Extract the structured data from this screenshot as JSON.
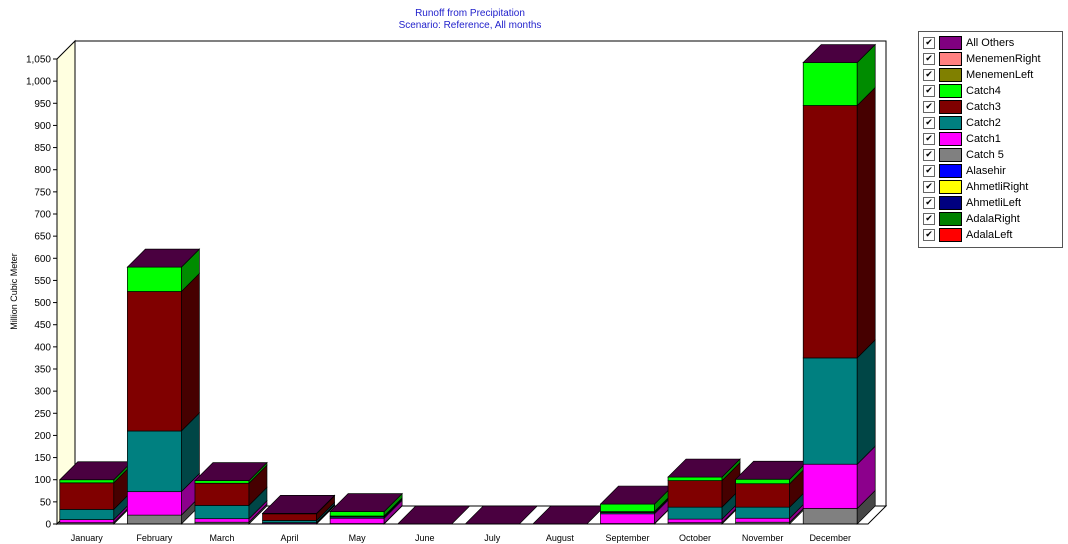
{
  "chart_data": {
    "type": "bar",
    "stacked": true,
    "three_d": true,
    "title": "Runoff from Precipitation",
    "subtitle": "Scenario: Reference,  All months",
    "xlabel": "",
    "ylabel": "Million Cubic Meter",
    "ylim": [
      0,
      1050
    ],
    "yticks": [
      0,
      50,
      100,
      150,
      200,
      250,
      300,
      350,
      400,
      450,
      500,
      550,
      600,
      650,
      700,
      750,
      800,
      850,
      900,
      950,
      1000,
      1050
    ],
    "ytick_labels": [
      "0",
      "50",
      "100",
      "150",
      "200",
      "250",
      "300",
      "350",
      "400",
      "450",
      "500",
      "550",
      "600",
      "650",
      "700",
      "750",
      "800",
      "850",
      "900",
      "950",
      "1,000",
      "1,050"
    ],
    "grid": false,
    "legend_position": "right",
    "categories": [
      "January",
      "February",
      "March",
      "April",
      "May",
      "June",
      "July",
      "August",
      "September",
      "October",
      "November",
      "December"
    ],
    "series": [
      {
        "name": "AdalaLeft",
        "color": "#ff0000",
        "values": [
          0,
          0,
          0,
          0,
          0,
          0,
          0,
          0,
          0,
          0,
          0,
          0
        ]
      },
      {
        "name": "AdalaRight",
        "color": "#008000",
        "values": [
          0,
          0,
          0,
          0,
          0,
          0,
          0,
          0,
          0,
          0,
          0,
          0
        ]
      },
      {
        "name": "AhmetliLeft",
        "color": "#000080",
        "values": [
          0,
          0,
          0,
          0,
          0,
          0,
          0,
          0,
          0,
          0,
          0,
          0
        ]
      },
      {
        "name": "AhmetliRight",
        "color": "#ffff00",
        "values": [
          0,
          0,
          0,
          0,
          0,
          0,
          0,
          0,
          0,
          0,
          0,
          0
        ]
      },
      {
        "name": "Alasehir",
        "color": "#0000ff",
        "values": [
          0,
          0,
          0,
          0,
          0,
          0,
          0,
          0,
          0,
          0,
          0,
          0
        ]
      },
      {
        "name": "Catch 5",
        "color": "#808080",
        "values": [
          3,
          20,
          4,
          1,
          1,
          0,
          0,
          0,
          1,
          3,
          4,
          35
        ]
      },
      {
        "name": "Catch1",
        "color": "#ff00ff",
        "values": [
          7,
          53,
          8,
          2,
          12,
          0,
          0,
          0,
          22,
          8,
          9,
          100
        ]
      },
      {
        "name": "Catch2",
        "color": "#008080",
        "values": [
          23,
          137,
          30,
          5,
          3,
          0,
          0,
          0,
          3,
          27,
          25,
          240
        ]
      },
      {
        "name": "Catch3",
        "color": "#800000",
        "values": [
          60,
          315,
          50,
          15,
          2,
          0,
          0,
          0,
          2,
          60,
          53,
          570
        ]
      },
      {
        "name": "Catch4",
        "color": "#00ff00",
        "values": [
          7,
          55,
          6,
          1,
          10,
          0,
          0,
          0,
          17,
          8,
          10,
          97
        ]
      },
      {
        "name": "MenemenLeft",
        "color": "#808000",
        "values": [
          0,
          0,
          0,
          0,
          0,
          0,
          0,
          0,
          0,
          0,
          0,
          0
        ]
      },
      {
        "name": "MenemenRight",
        "color": "#ff8080",
        "values": [
          0,
          0,
          0,
          0,
          0,
          0,
          0,
          0,
          0,
          0,
          0,
          0
        ]
      },
      {
        "name": "All Others",
        "color": "#800080",
        "values": [
          0,
          0,
          0,
          0,
          0,
          0,
          0,
          0,
          0,
          0,
          0,
          0
        ]
      }
    ],
    "legend_order": [
      "All Others",
      "MenemenRight",
      "MenemenLeft",
      "Catch4",
      "Catch3",
      "Catch2",
      "Catch1",
      "Catch 5",
      "Alasehir",
      "AhmetliRight",
      "AhmetliLeft",
      "AdalaRight",
      "AdalaLeft"
    ],
    "legend_checked": true,
    "cap_color": "#4a0040",
    "back_wall_color": "#ffffe0"
  },
  "legend_check_glyph": "✔"
}
